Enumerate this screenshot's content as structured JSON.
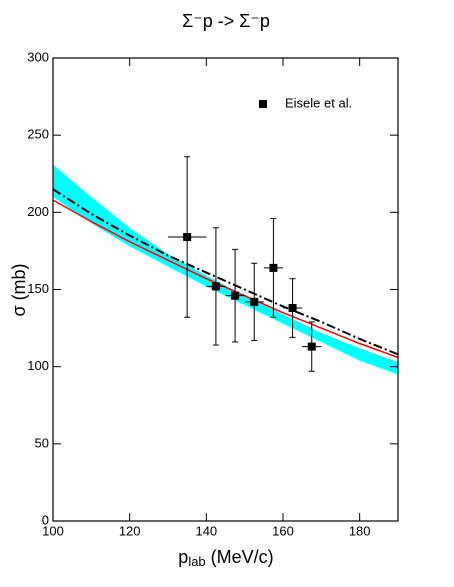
{
  "chart_data": {
    "type": "scatter",
    "title": "Σ⁻p -> Σ⁻p",
    "x_label": {
      "main": "p",
      "sub": "lab",
      "rest": " (MeV/c)"
    },
    "y_label": "σ (mb)",
    "xlim": [
      100,
      190
    ],
    "ylim": [
      0,
      300
    ],
    "xticks": [
      100,
      120,
      140,
      160,
      180
    ],
    "yticks": [
      0,
      50,
      100,
      150,
      200,
      250,
      300
    ],
    "legend_position": "upper right",
    "series": [
      {
        "name": "Eisele et al.",
        "color": "#000000",
        "x": [
          135,
          142.5,
          147.5,
          152.5,
          157.5,
          162.5,
          167.5
        ],
        "values": [
          184,
          152,
          146,
          142,
          164,
          138,
          113
        ],
        "errors": [
          52,
          38,
          30,
          25,
          32,
          19,
          16
        ],
        "xerr": [
          5,
          2.5,
          2.5,
          2.5,
          2.5,
          2.5,
          2.5
        ]
      }
    ],
    "curves": [
      {
        "style": "solid",
        "color": "#ff0000",
        "x": [
          100,
          110,
          120,
          130,
          140,
          150,
          160,
          170,
          180,
          190
        ],
        "values": [
          208,
          194,
          181,
          169,
          157,
          146,
          135,
          125,
          115,
          106
        ]
      },
      {
        "style": "dashdot",
        "color": "#000000",
        "x": [
          100,
          110,
          120,
          130,
          140,
          150,
          160,
          170,
          180,
          190
        ],
        "values": [
          215,
          199,
          185,
          172,
          161,
          150,
          139,
          129,
          118,
          108
        ]
      }
    ],
    "band": {
      "color": "#00ffff",
      "x": [
        100,
        110,
        120,
        130,
        140,
        150,
        160,
        170,
        180,
        190
      ],
      "upper": [
        231,
        210,
        190,
        173,
        159,
        146,
        134,
        122,
        112,
        103
      ],
      "lower": [
        210,
        193,
        178,
        165,
        152,
        140,
        128,
        116,
        104,
        95
      ]
    }
  }
}
